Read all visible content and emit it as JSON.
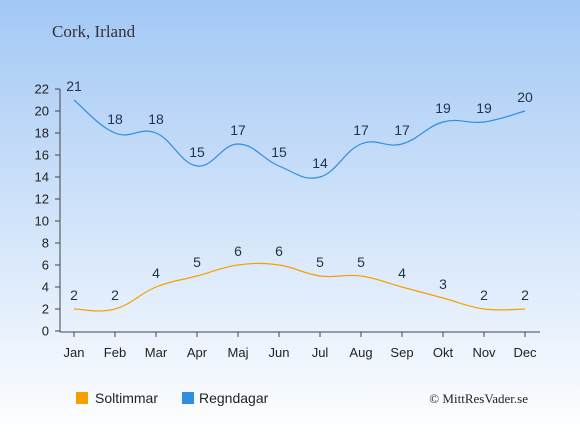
{
  "title": "Cork, Irland",
  "credit": "© MittResVader.se",
  "colors": {
    "background_top": "#a3c8f5",
    "background_bottom": "#ffffff",
    "sunshine": "#f5a000",
    "rain": "#2f8ee0"
  },
  "chart_data": {
    "type": "line",
    "categories": [
      "Jan",
      "Feb",
      "Mar",
      "Apr",
      "Maj",
      "Jun",
      "Jul",
      "Aug",
      "Sep",
      "Okt",
      "Nov",
      "Dec"
    ],
    "ylim": [
      0,
      22
    ],
    "yticks": [
      0,
      2,
      4,
      6,
      8,
      10,
      12,
      14,
      16,
      18,
      20,
      22
    ],
    "grid": false,
    "legend_position": "bottom-left",
    "series": [
      {
        "name": "Soltimmar",
        "color": "#f5a000",
        "values": [
          2,
          2,
          4,
          5,
          6,
          6,
          5,
          5,
          4,
          3,
          2,
          2
        ]
      },
      {
        "name": "Regndagar",
        "color": "#2f8ee0",
        "values": [
          21,
          18,
          18,
          15,
          17,
          15,
          14,
          17,
          17,
          19,
          19,
          20
        ]
      }
    ]
  }
}
